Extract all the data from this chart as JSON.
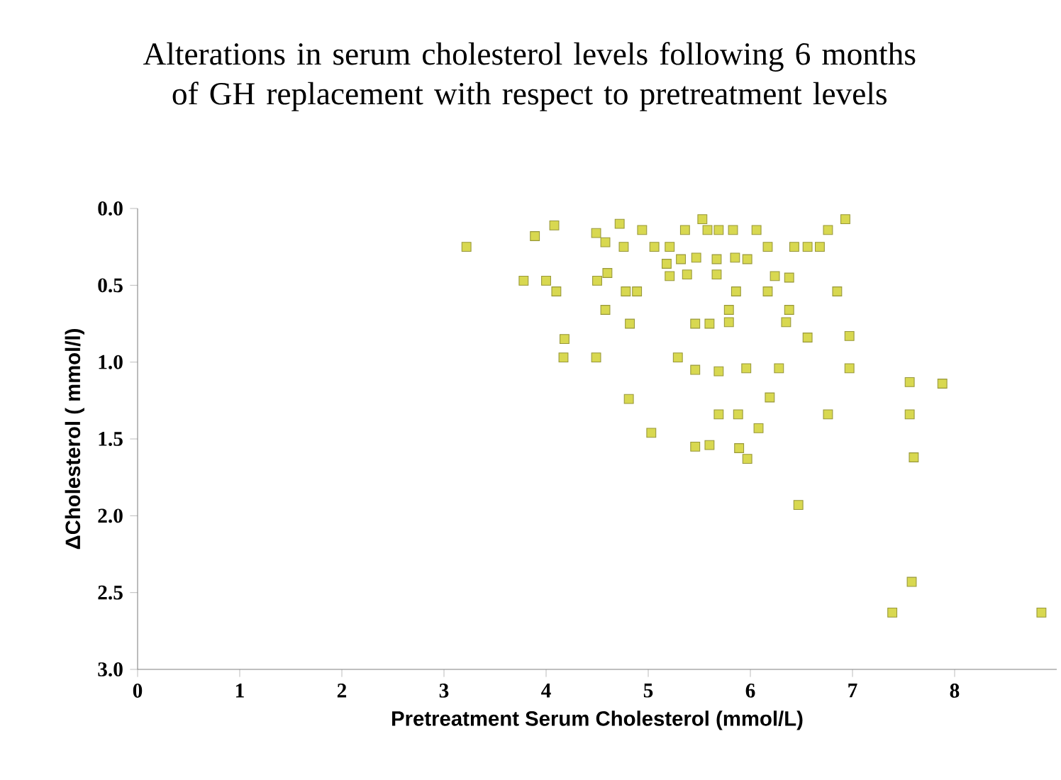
{
  "chart_data": {
    "type": "scatter",
    "title": "Alterations in serum cholesterol levels following 6 months of GH replacement with respect to pretreatment levels",
    "xlabel": "Pretreatment Serum Cholesterol (mmol/L)",
    "ylabel": "ΔCholesterol ( mmol/l)",
    "marker": "square",
    "series": [
      {
        "color": "#d8d850",
        "x": [
          3.22,
          3.89,
          4.08,
          4.49,
          4.72,
          4.58,
          4.76,
          4.94,
          5.06,
          5.21,
          5.36,
          5.53,
          5.58,
          5.69,
          5.83,
          5.18,
          5.32,
          5.47,
          5.67,
          5.85,
          5.97,
          5.21,
          5.38,
          5.67,
          3.78,
          4.0,
          4.1,
          4.5,
          4.6,
          4.78,
          4.89,
          5.86,
          4.58,
          4.82,
          5.46,
          5.6,
          5.79,
          5.79,
          4.18,
          4.17,
          4.49,
          5.29,
          5.46,
          5.69,
          5.96,
          4.81,
          5.69,
          5.88,
          5.03,
          5.46,
          5.6,
          5.89,
          5.97,
          6.06,
          6.76,
          6.93,
          6.17,
          6.43,
          6.56,
          6.68,
          6.24,
          6.38,
          6.17,
          6.85,
          6.38,
          6.35,
          6.56,
          6.97,
          6.28,
          6.97,
          7.56,
          7.88,
          6.19,
          6.76,
          7.56,
          6.08,
          7.6,
          6.47,
          7.58,
          7.39,
          8.85
        ],
        "values": [
          0.25,
          0.18,
          0.11,
          0.16,
          0.1,
          0.22,
          0.25,
          0.14,
          0.25,
          0.25,
          0.14,
          0.07,
          0.14,
          0.14,
          0.14,
          0.36,
          0.33,
          0.32,
          0.33,
          0.32,
          0.33,
          0.44,
          0.43,
          0.43,
          0.47,
          0.47,
          0.54,
          0.47,
          0.42,
          0.54,
          0.54,
          0.54,
          0.66,
          0.75,
          0.75,
          0.75,
          0.66,
          0.74,
          0.85,
          0.97,
          0.97,
          0.97,
          1.05,
          1.06,
          1.04,
          1.24,
          1.34,
          1.34,
          1.46,
          1.55,
          1.54,
          1.56,
          1.63,
          0.14,
          0.14,
          0.07,
          0.25,
          0.25,
          0.25,
          0.25,
          0.44,
          0.45,
          0.54,
          0.54,
          0.66,
          0.74,
          0.84,
          0.83,
          1.04,
          1.04,
          1.13,
          1.14,
          1.23,
          1.34,
          1.34,
          1.43,
          1.62,
          1.93,
          2.43,
          2.63,
          2.63
        ]
      }
    ],
    "xlim": [
      0,
      9
    ],
    "xticks": [
      0,
      1,
      2,
      3,
      4,
      5,
      6,
      7,
      8
    ],
    "ylim": [
      3.0,
      0.0
    ],
    "yticks": [
      {
        "value": 0,
        "label": "0.0"
      },
      {
        "value": 0.5,
        "label": "0.5"
      },
      {
        "value": 1,
        "label": "1.0"
      },
      {
        "value": 1.5,
        "label": "1.5"
      },
      {
        "value": 2,
        "label": "2.0"
      },
      {
        "value": 2.5,
        "label": "2.5"
      },
      {
        "value": 3,
        "label": "3.0"
      }
    ]
  }
}
